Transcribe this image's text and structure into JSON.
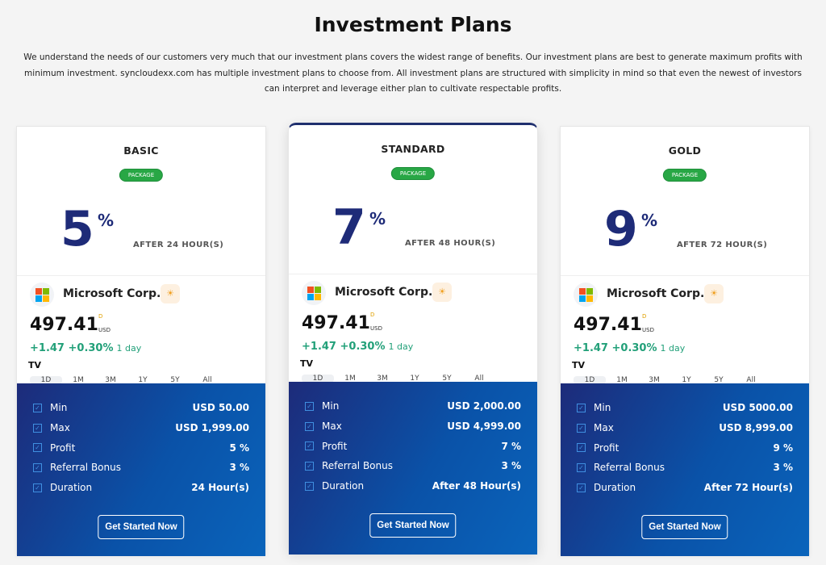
{
  "header": {
    "title": "Investment Plans",
    "intro": "We understand the needs of our customers very much that our investment plans covers the widest range of benefits. Our investment plans are best to generate maximum profits with minimum investment. syncloudexx.com has multiple investment plans to choose from. All investment plans are structured with simplicity in mind so that even the newest of investors can interpret and leverage either plan to cultivate respectable profits."
  },
  "widget": {
    "company": "Microsoft Corp.",
    "price": "497.41",
    "d": "D",
    "currency": "USD",
    "change": "+1.47",
    "change_pct": "+0.30%",
    "period": "1 day",
    "tv": "TV",
    "ranges": [
      "1D",
      "1M",
      "3M",
      "1Y",
      "5Y",
      "All"
    ]
  },
  "labels": {
    "badge": "PACKAGE",
    "pct": "%",
    "min": "Min",
    "max": "Max",
    "profit": "Profit",
    "referral": "Referral Bonus",
    "duration": "Duration",
    "button": "Get Started Now"
  },
  "colors": {
    "accent": "#1e2b78",
    "badge": "#28a745",
    "change": "#22a079"
  },
  "plans": [
    {
      "name": "BASIC",
      "rate": "5",
      "after": "AFTER 24 HOUR(S)",
      "min": "USD 50.00",
      "max": "USD 1,999.00",
      "profit": "5 %",
      "referral": "3 %",
      "duration": "24 Hour(s)"
    },
    {
      "name": "STANDARD",
      "rate": "7",
      "after": "AFTER 48 HOUR(S)",
      "min": "USD 2,000.00",
      "max": "USD 4,999.00",
      "profit": "7 %",
      "referral": "3 %",
      "duration": "After 48 Hour(s)"
    },
    {
      "name": "GOLD",
      "rate": "9",
      "after": "AFTER 72 HOUR(S)",
      "min": "USD 5000.00",
      "max": "USD 8,999.00",
      "profit": "9 %",
      "referral": "3 %",
      "duration": "After 72 Hour(s)"
    }
  ]
}
